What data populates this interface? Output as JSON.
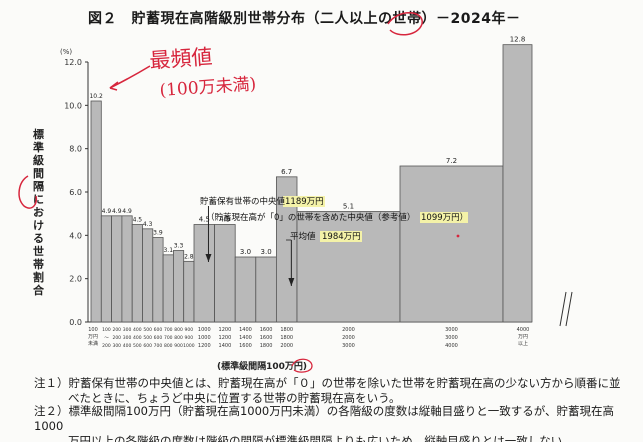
{
  "title": "図２　貯蓄現在高階級別世帯分布（二人以上の世帯）－2024年－",
  "chart_data": {
    "type": "bar",
    "ylabel": "標準級間隔における世帯割合",
    "yunit": "(%)",
    "xlabel": "(標準級間隔100万円)",
    "ylim": [
      0,
      12
    ],
    "yticks": [
      "0.0",
      "2.0",
      "4.0",
      "6.0",
      "8.0",
      "10.0",
      "12.0"
    ],
    "values": [
      10.2,
      4.9,
      4.9,
      4.9,
      4.5,
      4.3,
      3.9,
      3.1,
      3.3,
      2.8,
      4.5,
      4.5,
      3.0,
      3.0,
      6.7,
      5.1,
      7.2,
      12.8
    ],
    "value_labels": [
      "10.2",
      "4.9",
      "4.9",
      "4.9",
      "4.5",
      "4.3",
      "3.9",
      "3.1",
      "3.3",
      "2.8",
      "4.5",
      "4.5",
      "3.0",
      "3.0",
      "6.7",
      "5.1",
      "7.2",
      "12.8"
    ],
    "bin_edges": [
      0,
      100,
      200,
      300,
      400,
      500,
      600,
      700,
      800,
      900,
      1000,
      1200,
      1400,
      1600,
      1800,
      2000,
      3000,
      4000,
      5000
    ],
    "x_tick_row1": [
      "100",
      "200",
      "300",
      "400",
      "500",
      "600",
      "700",
      "800",
      "900",
      "1000",
      "1200",
      "1400",
      "1600",
      "1800",
      "2000",
      "3000",
      "4000"
    ],
    "x_tick_row2": [
      "～",
      "200",
      "300",
      "400",
      "500",
      "600",
      "700",
      "800",
      "900",
      "1000",
      "1200",
      "1400",
      "1600",
      "1800",
      "2000",
      "3000",
      "4000"
    ],
    "x_first_label": [
      "100",
      "万円",
      "未満"
    ],
    "x_last_label": [
      "4000",
      "万円",
      "以上"
    ],
    "annotations": {
      "median_excl_zero_label": "貯蓄保有世帯の中央値",
      "median_excl_zero_value": "1189万円",
      "median_incl_zero_label": "（貯蓄現在高が「0」の世帯を含めた中央値（参考値）",
      "median_incl_zero_value": "1099万円）",
      "mean_label": "平均値",
      "mean_value": "1984万円",
      "median_position": 1189,
      "mean_position": 1984
    }
  },
  "handwriting": {
    "top_note": "最頻値",
    "top_note2": "(100万未満)"
  },
  "notes": {
    "note1_line1": "注１）貯蓄保有世帯の中央値とは、貯蓄現在高が「０」の世帯を除いた世帯を貯蓄現在高の少ない方から順番に並",
    "note1_line2": "べたときに、ちょうど中央に位置する世帯の貯蓄現在高をいう。",
    "note2_line1": "注２）標準級間隔100万円（貯蓄現在高1000万円未満）の各階級の度数は縦軸目盛りと一致するが、貯蓄現在高1000",
    "note2_line2": "万円以上の各階級の度数は階級の間隔が標準級間隔よりも広いため、縦軸目盛りとは一致しない。"
  },
  "colors": {
    "bar_fill": "#b9b9b9",
    "bar_stroke": "#555555",
    "red_ink": "#d7263d",
    "highlight": "#f4f2a8"
  }
}
